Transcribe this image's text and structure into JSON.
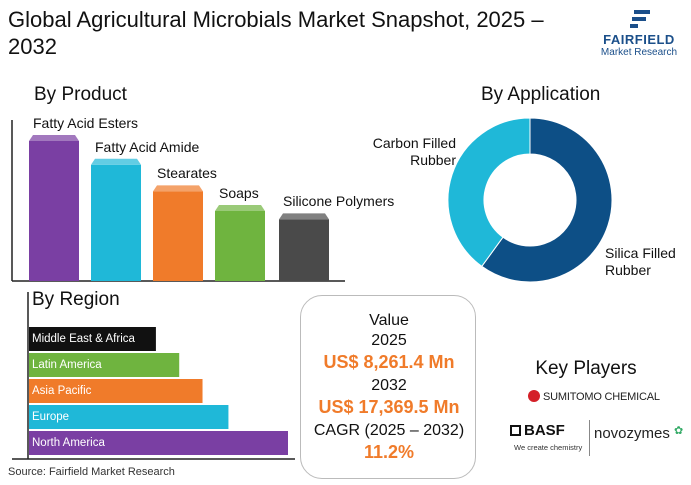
{
  "header": {
    "title": "Global Agricultural Microbials Market Snapshot, 2025 – 2032",
    "logo_name": "FAIRFIELD",
    "logo_sub": "Market Research"
  },
  "colors": {
    "purple": "#7a3fa3",
    "teal": "#1fb8d8",
    "orange": "#f07b2a",
    "green": "#6fb43f",
    "gray": "#4a4a4a",
    "black": "#111111",
    "navy": "#0d4f86",
    "brand": "#1b4f8a"
  },
  "sections": {
    "product": "By Product",
    "application": "By Application",
    "region": "By Region"
  },
  "value": {
    "label": "Value",
    "year1": "2025",
    "value1": "US$ 8,261.4 Mn",
    "year2": "2032",
    "value2": "US$ 17,369.5 Mn",
    "cagr_label": "CAGR (2025 – 2032)",
    "cagr_value": "11.2%"
  },
  "key_players": {
    "title": "Key Players",
    "sumitomo": "SUMITOMO CHEMICAL",
    "basf": "BASF",
    "basf_tag": "We create chemistry",
    "novozymes": "novozymes"
  },
  "source": "Source: Fairfield Market Research",
  "chart_data": [
    {
      "type": "bar",
      "title": "By Product",
      "categories": [
        "Fatty Acid Esters",
        "Fatty Acid Amide",
        "Stearates",
        "Soaps",
        "Silicone Polymers"
      ],
      "values": [
        100,
        83,
        64,
        50,
        44
      ],
      "colors": [
        "#7a3fa3",
        "#1fb8d8",
        "#f07b2a",
        "#6fb43f",
        "#4a4a4a"
      ]
    },
    {
      "type": "pie",
      "title": "By Application",
      "donut": true,
      "labels": [
        "Silica Filled Rubber",
        "Carbon Filled Rubber"
      ],
      "values": [
        60,
        40
      ],
      "colors": [
        "#0d4f86",
        "#1fb8d8"
      ]
    },
    {
      "type": "bar",
      "orientation": "horizontal",
      "title": "By Region",
      "categories": [
        "Middle East & Africa",
        "Latin America",
        "Asia Pacific",
        "Europe",
        "North America"
      ],
      "values": [
        49,
        58,
        67,
        77,
        100
      ],
      "colors": [
        "#111111",
        "#6fb43f",
        "#f07b2a",
        "#1fb8d8",
        "#7a3fa3"
      ]
    }
  ]
}
